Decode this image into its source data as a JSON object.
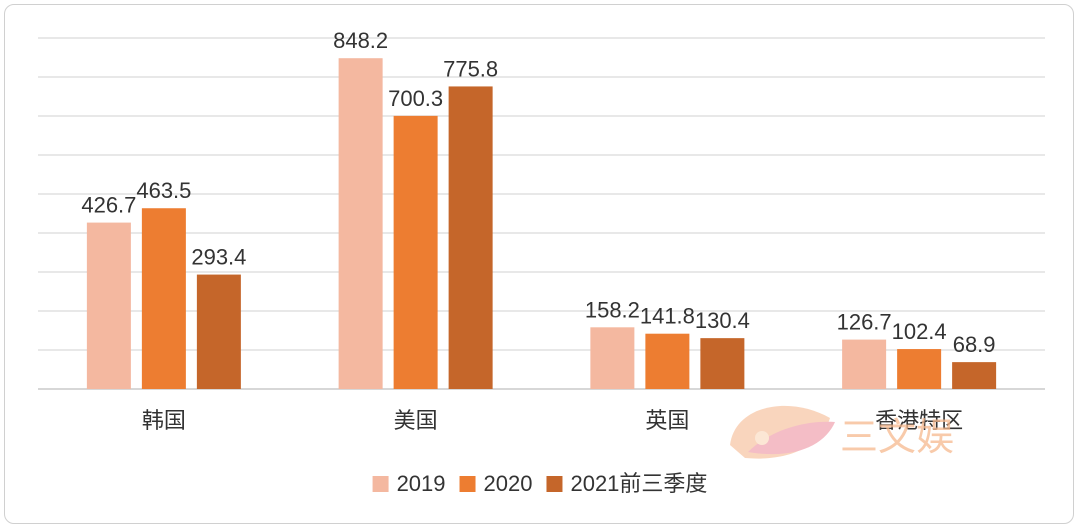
{
  "chart_data": {
    "type": "bar",
    "categories": [
      "韩国",
      "美国",
      "英国",
      "香港特区"
    ],
    "series": [
      {
        "name": "2019",
        "values": [
          426.7,
          848.2,
          158.2,
          126.7
        ],
        "color": "#f4b8a0"
      },
      {
        "name": "2020",
        "values": [
          463.5,
          700.3,
          141.8,
          102.4
        ],
        "color": "#ed7d31"
      },
      {
        "name": "2021前三季度",
        "values": [
          293.4,
          775.8,
          130.4,
          68.9
        ],
        "color": "#c5662a"
      }
    ],
    "ylim": [
      0,
      900
    ],
    "grid": true,
    "legend_position": "bottom"
  },
  "watermark": {
    "text": "三文娱"
  }
}
